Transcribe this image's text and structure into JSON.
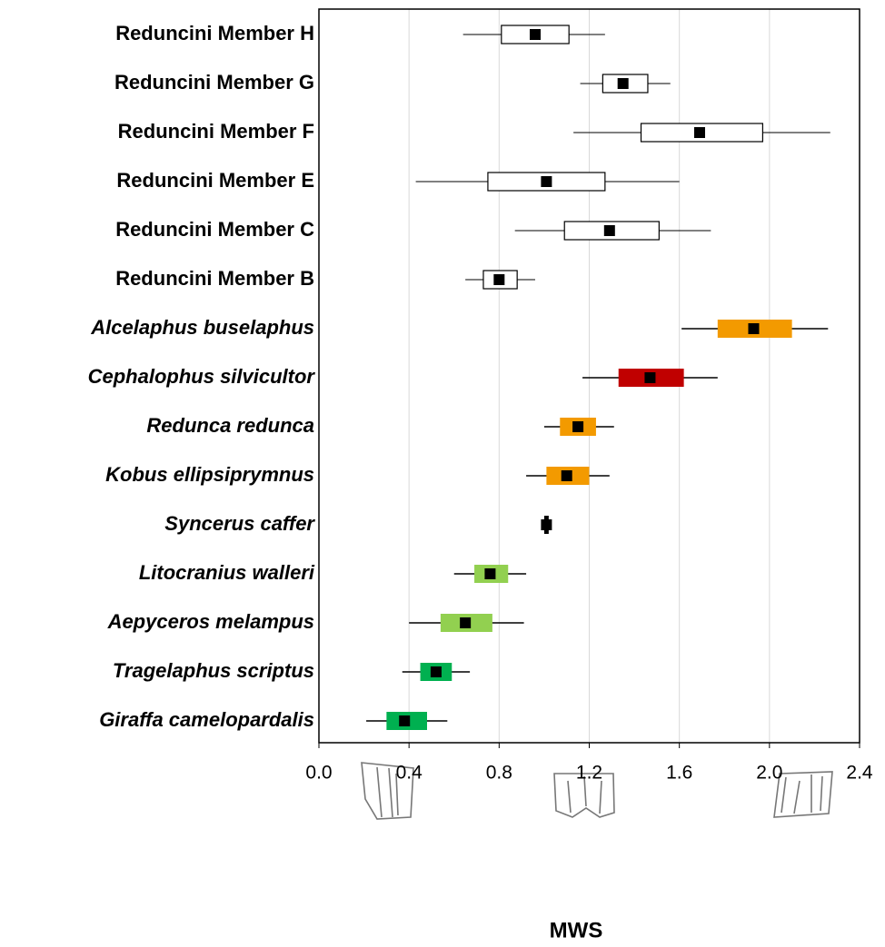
{
  "chart_data": {
    "type": "boxplot",
    "xlabel": "MWS",
    "categories": [
      "Reduncini Member H",
      "Reduncini Member G",
      "Reduncini Member F",
      "Reduncini Member E",
      "Reduncini Member C",
      "Reduncini Member B",
      "Alcelaphus buselaphus",
      "Cephalophus silvicultor",
      "Redunca redunca",
      "Kobus ellipsiprymnus",
      "Syncerus caffer",
      "Litocranius walleri",
      "Aepyceros melampus",
      "Tragelaphus scriptus",
      "Giraffa camelopardalis"
    ],
    "italic": [
      false,
      false,
      false,
      false,
      false,
      false,
      true,
      true,
      true,
      true,
      true,
      true,
      true,
      true,
      true
    ],
    "colors": [
      "#ffffff",
      "#ffffff",
      "#ffffff",
      "#ffffff",
      "#ffffff",
      "#ffffff",
      "#f39a00",
      "#c00000",
      "#f39a00",
      "#f39a00",
      "#000000",
      "#92d050",
      "#92d050",
      "#00b050",
      "#00b050"
    ],
    "stats": [
      {
        "min": 0.64,
        "q1": 0.81,
        "median": 0.96,
        "q3": 1.11,
        "max": 1.27
      },
      {
        "min": 1.16,
        "q1": 1.26,
        "median": 1.35,
        "q3": 1.46,
        "max": 1.56
      },
      {
        "min": 1.13,
        "q1": 1.43,
        "median": 1.69,
        "q3": 1.97,
        "max": 2.27
      },
      {
        "min": 0.43,
        "q1": 0.75,
        "median": 1.01,
        "q3": 1.27,
        "max": 1.6
      },
      {
        "min": 0.87,
        "q1": 1.09,
        "median": 1.29,
        "q3": 1.51,
        "max": 1.74
      },
      {
        "min": 0.65,
        "q1": 0.73,
        "median": 0.8,
        "q3": 0.88,
        "max": 0.96
      },
      {
        "min": 1.61,
        "q1": 1.77,
        "median": 1.93,
        "q3": 2.1,
        "max": 2.26
      },
      {
        "min": 1.17,
        "q1": 1.33,
        "median": 1.47,
        "q3": 1.62,
        "max": 1.77
      },
      {
        "min": 1.0,
        "q1": 1.07,
        "median": 1.15,
        "q3": 1.23,
        "max": 1.31
      },
      {
        "min": 0.92,
        "q1": 1.01,
        "median": 1.1,
        "q3": 1.2,
        "max": 1.29
      },
      {
        "min": 1.0,
        "q1": 1.0,
        "median": 1.01,
        "q3": 1.02,
        "max": 1.02
      },
      {
        "min": 0.6,
        "q1": 0.69,
        "median": 0.76,
        "q3": 0.84,
        "max": 0.92
      },
      {
        "min": 0.4,
        "q1": 0.54,
        "median": 0.65,
        "q3": 0.77,
        "max": 0.91
      },
      {
        "min": 0.37,
        "q1": 0.45,
        "median": 0.52,
        "q3": 0.59,
        "max": 0.67
      },
      {
        "min": 0.21,
        "q1": 0.3,
        "median": 0.38,
        "q3": 0.48,
        "max": 0.57
      }
    ],
    "xlim": [
      0,
      2.4
    ],
    "xticks": [
      {
        "value": 0,
        "label": "0.0"
      },
      0.4,
      0.8,
      1.2,
      1.6,
      {
        "value": 2,
        "label": "2.0"
      },
      2.4
    ],
    "grid": true
  }
}
